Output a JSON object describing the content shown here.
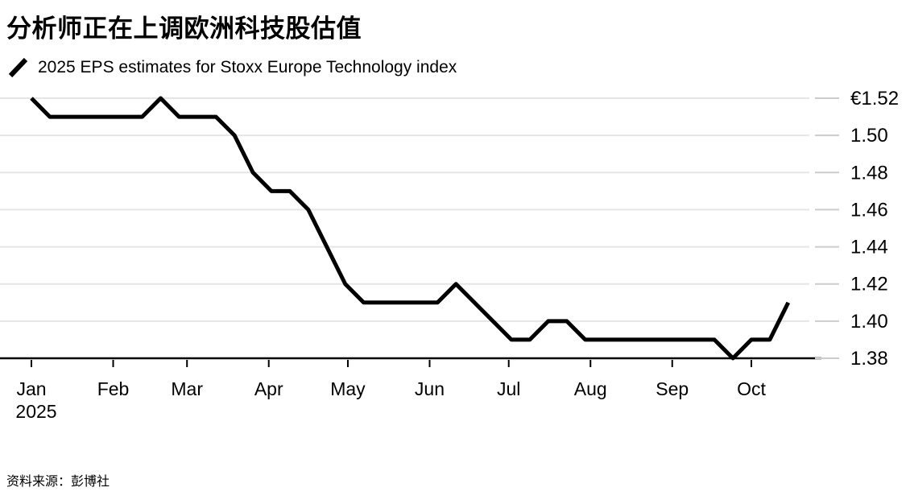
{
  "title": "分析师正在上调欧洲科技股估值",
  "legend": {
    "label": "2025 EPS estimates for Stoxx Europe Technology index"
  },
  "source": "资料来源：彭博社",
  "colors": {
    "line": "#000000",
    "grid": "#e5e5e5",
    "tick_dash": "#cccccc",
    "axis": "#000000",
    "text": "#000000"
  },
  "chart_data": {
    "type": "line",
    "title": "分析师正在上调欧洲科技股估值",
    "series_name": "2025 EPS estimates for Stoxx Europe Technology index",
    "currency_prefix": "€",
    "grid": "horizontal",
    "legend_position": "top-left",
    "ylim": [
      1.38,
      1.52
    ],
    "y_ticks": [
      1.52,
      1.5,
      1.48,
      1.46,
      1.44,
      1.42,
      1.4,
      1.38
    ],
    "y_tick_labels": [
      "€1.52",
      "1.50",
      "1.48",
      "1.46",
      "1.44",
      "1.42",
      "1.40",
      "1.38"
    ],
    "x_tick_labels": [
      "Jan",
      "Feb",
      "Mar",
      "Apr",
      "May",
      "Jun",
      "Jul",
      "Aug",
      "Sep",
      "Oct"
    ],
    "x_sub_label": "2025",
    "x": [
      "2025-01-01",
      "2025-01-08",
      "2025-01-15",
      "2025-01-22",
      "2025-01-29",
      "2025-02-05",
      "2025-02-12",
      "2025-02-19",
      "2025-02-26",
      "2025-03-05",
      "2025-03-12",
      "2025-03-19",
      "2025-03-26",
      "2025-04-02",
      "2025-04-09",
      "2025-04-16",
      "2025-04-23",
      "2025-04-30",
      "2025-05-07",
      "2025-05-14",
      "2025-05-21",
      "2025-05-28",
      "2025-06-04",
      "2025-06-11",
      "2025-06-18",
      "2025-06-25",
      "2025-07-02",
      "2025-07-09",
      "2025-07-16",
      "2025-07-23",
      "2025-07-30",
      "2025-08-06",
      "2025-08-13",
      "2025-08-20",
      "2025-08-27",
      "2025-09-03",
      "2025-09-10",
      "2025-09-17",
      "2025-09-24",
      "2025-10-01",
      "2025-10-08",
      "2025-10-15"
    ],
    "values": [
      1.52,
      1.51,
      1.51,
      1.51,
      1.51,
      1.51,
      1.51,
      1.52,
      1.51,
      1.51,
      1.51,
      1.5,
      1.48,
      1.47,
      1.47,
      1.46,
      1.44,
      1.42,
      1.41,
      1.41,
      1.41,
      1.41,
      1.41,
      1.42,
      1.41,
      1.4,
      1.39,
      1.39,
      1.4,
      1.4,
      1.39,
      1.39,
      1.39,
      1.39,
      1.39,
      1.39,
      1.39,
      1.39,
      1.38,
      1.39,
      1.39,
      1.41
    ]
  }
}
